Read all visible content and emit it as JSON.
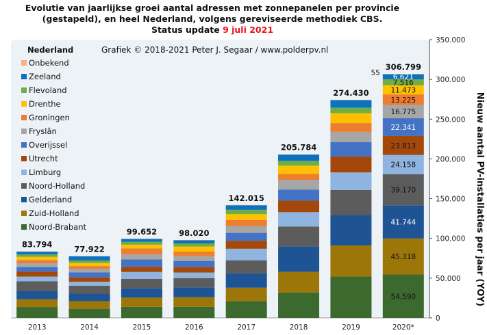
{
  "title": {
    "line1": "Evolutie van jaarlijkse groei aantal adressen met zonnepanelen per provincie",
    "line2": "(gestapeld), en heel Nederland, volgens gereviseerde methodiek CBS.",
    "line3_prefix": "Status update ",
    "line3_date": "9 juli 2021"
  },
  "credit": "Grafiek © 2018-2021 Peter J. Segaar / www.polderpv.nl",
  "legend_title": "Nederland",
  "colors": {
    "plot_bg": "#edf2f6",
    "red_date": "#e8101c"
  },
  "chart_data": {
    "type": "bar",
    "stacked": true,
    "categories": [
      "2013",
      "2014",
      "2015",
      "2016",
      "2017",
      "2018",
      "2019",
      "2020*"
    ],
    "totals": [
      83794,
      77922,
      99652,
      98020,
      142015,
      205784,
      274430,
      306799
    ],
    "ylim": [
      0,
      350000
    ],
    "yticks": [
      0,
      50000,
      100000,
      150000,
      200000,
      250000,
      300000,
      350000
    ],
    "ytick_labels": [
      "0",
      "50.000",
      "100.000",
      "150.000",
      "200.000",
      "250.000",
      "300.000",
      "350.000"
    ],
    "axis_side": "right",
    "ylabel": "Nieuw aantal PV-installaties per jaar (YOY)",
    "xlabel": "",
    "legend_position": "top-left",
    "grid": false,
    "series": [
      {
        "name": "Noord-Brabant",
        "color": "#3c6a2e",
        "values": [
          13700,
          11500,
          13900,
          14000,
          21000,
          32000,
          52000,
          54590
        ]
      },
      {
        "name": "Zuid-Holland",
        "color": "#9c7608",
        "values": [
          9700,
          9500,
          11600,
          12000,
          17000,
          26000,
          39000,
          45318
        ]
      },
      {
        "name": "Gelderland",
        "color": "#1f5494",
        "values": [
          10500,
          9500,
          11700,
          12400,
          18000,
          32000,
          38000,
          41744
        ]
      },
      {
        "name": "Noord-Holland",
        "color": "#5c5c5c",
        "values": [
          12100,
          10000,
          12000,
          11700,
          16500,
          25000,
          32000,
          39170
        ]
      },
      {
        "name": "Limburg",
        "color": "#8fb4e0",
        "values": [
          6000,
          5000,
          8600,
          7000,
          14500,
          18000,
          22000,
          24158
        ]
      },
      {
        "name": "Utrecht",
        "color": "#a3480a",
        "values": [
          6000,
          5500,
          6500,
          6800,
          10000,
          14500,
          20000,
          23813
        ]
      },
      {
        "name": "Overijssel",
        "color": "#4472c4",
        "values": [
          6000,
          6400,
          9400,
          7800,
          10000,
          14000,
          18000,
          22341
        ]
      },
      {
        "name": "Fryslân",
        "color": "#a6a6a6",
        "values": [
          4800,
          4500,
          6200,
          6000,
          8500,
          12000,
          13000,
          16775
        ]
      },
      {
        "name": "Groningen",
        "color": "#ed7d31",
        "values": [
          4000,
          3400,
          7600,
          5700,
          7500,
          7500,
          11000,
          13225
        ]
      },
      {
        "name": "Drenthe",
        "color": "#ffc000",
        "values": [
          4000,
          3700,
          4600,
          6400,
          7500,
          10500,
          12500,
          11473
        ]
      },
      {
        "name": "Flevoland",
        "color": "#70ad47",
        "values": [
          3000,
          3000,
          3600,
          3900,
          5500,
          6000,
          7000,
          7516
        ]
      },
      {
        "name": "Zeeland",
        "color": "#0b72c0",
        "values": [
          3500,
          5500,
          3700,
          4000,
          5800,
          8000,
          9500,
          6621
        ]
      },
      {
        "name": "Onbekend",
        "color": "#f4b183",
        "values": [
          494,
          422,
          252,
          320,
          215,
          284,
          430,
          55
        ]
      }
    ],
    "labeled_year": "2020*",
    "labeled_values": [
      "54.590",
      "45.318",
      "41.744",
      "39.170",
      "24.158",
      "23.813",
      "22.341",
      "16.775",
      "13.225",
      "11.473",
      "7.516",
      "6.621",
      "55"
    ]
  }
}
